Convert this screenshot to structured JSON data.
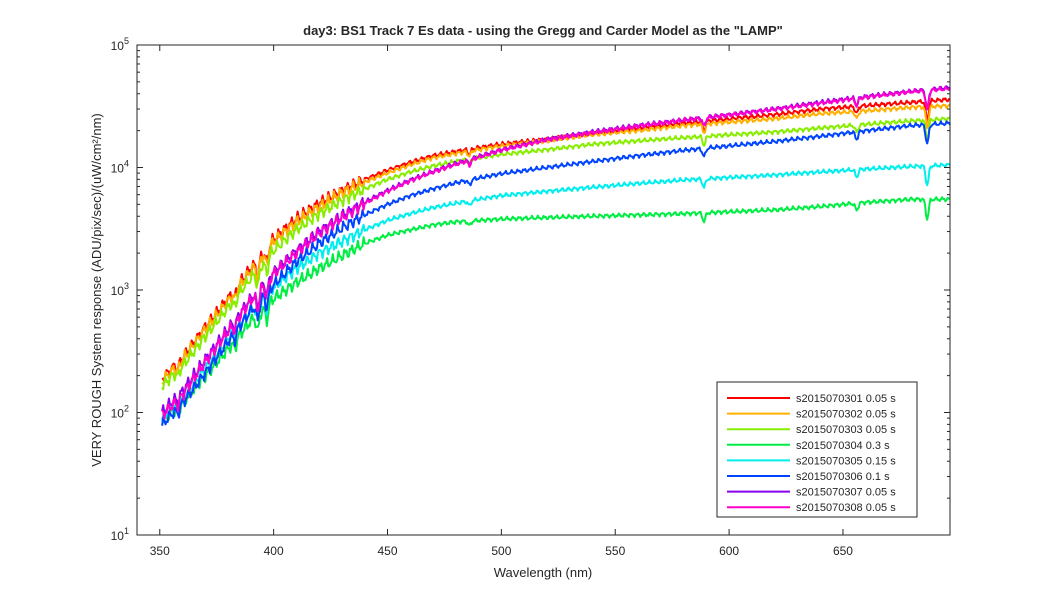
{
  "chart_data": {
    "type": "line",
    "title": "day3: BS1  Track 7 Es data - using the Gregg and Carder Model as the \"LAMP\"",
    "xlabel": "Wavelength (nm)",
    "ylabel": "VERY ROUGH System response (ADU/pix/sec)/(uW/cm²/nm)",
    "xlim": [
      340,
      697
    ],
    "ylim": [
      10,
      100000
    ],
    "yscale": "log",
    "grid": false,
    "legend_position": "bottom-right",
    "x_ticks": [
      350,
      400,
      450,
      500,
      550,
      600,
      650
    ],
    "x_tick_labels": [
      "350",
      "400",
      "450",
      "500",
      "550",
      "600",
      "650"
    ],
    "y_ticks": [
      10,
      100,
      1000,
      10000,
      100000
    ],
    "y_tick_labels": [
      {
        "base": "10",
        "exp": "1"
      },
      {
        "base": "10",
        "exp": "2"
      },
      {
        "base": "10",
        "exp": "3"
      },
      {
        "base": "10",
        "exp": "4"
      },
      {
        "base": "10",
        "exp": "5"
      }
    ],
    "x": [
      351,
      360,
      370,
      380,
      390,
      400,
      410,
      420,
      430,
      440,
      450,
      460,
      470,
      480,
      490,
      500,
      520,
      540,
      560,
      580,
      600,
      620,
      640,
      660,
      680,
      697
    ],
    "series": [
      {
        "name": "s2015070301 0.05 s",
        "color": "#ff0000",
        "values": [
          190,
          280,
          500,
          850,
          1500,
          2600,
          3800,
          5100,
          6500,
          8000,
          9500,
          11000,
          12500,
          13500,
          14500,
          15500,
          17000,
          19000,
          21000,
          23000,
          25000,
          27000,
          30000,
          32000,
          34000,
          36000
        ]
      },
      {
        "name": "s2015070302 0.05 s",
        "color": "#ffb000",
        "values": [
          180,
          270,
          480,
          820,
          1450,
          2500,
          3600,
          4800,
          6200,
          7600,
          9000,
          10500,
          12000,
          13000,
          14000,
          15000,
          16500,
          18500,
          20000,
          22000,
          23500,
          25000,
          27500,
          29000,
          31000,
          32000
        ]
      },
      {
        "name": "s2015070303 0.05 s",
        "color": "#88ee00",
        "values": [
          165,
          240,
          420,
          720,
          1250,
          2100,
          3100,
          4200,
          5400,
          6700,
          8000,
          9200,
          10300,
          11200,
          12000,
          12800,
          14000,
          15500,
          16500,
          17500,
          18500,
          19500,
          21000,
          22500,
          24000,
          25000
        ]
      },
      {
        "name": "s2015070304 0.3 s",
        "color": "#00ee44",
        "values": [
          85,
          120,
          200,
          330,
          560,
          850,
          1150,
          1500,
          1900,
          2400,
          2800,
          3100,
          3400,
          3600,
          3700,
          3800,
          3900,
          4000,
          4100,
          4200,
          4350,
          4500,
          4800,
          5200,
          5500,
          5500
        ]
      },
      {
        "name": "s2015070305 0.15 s",
        "color": "#00eeee",
        "values": [
          90,
          130,
          230,
          400,
          680,
          1050,
          1500,
          2000,
          2500,
          3100,
          3700,
          4200,
          4700,
          5100,
          5500,
          5900,
          6400,
          6900,
          7400,
          7900,
          8300,
          8700,
          9200,
          9700,
          10200,
          10500
        ]
      },
      {
        "name": "s2015070306 0.1 s",
        "color": "#0044ff",
        "values": [
          80,
          120,
          210,
          380,
          680,
          1100,
          1700,
          2400,
          3200,
          4100,
          5000,
          5900,
          6700,
          7500,
          8200,
          8900,
          10000,
          11200,
          12500,
          13800,
          15000,
          16300,
          18000,
          20000,
          22000,
          23000
        ]
      },
      {
        "name": "s2015070307 0.05 s",
        "color": "#8800ee",
        "values": [
          100,
          150,
          270,
          480,
          850,
          1400,
          2100,
          3000,
          4000,
          5200,
          6500,
          7900,
          9300,
          10800,
          12300,
          14000,
          17000,
          19500,
          22000,
          24500,
          27000,
          30000,
          34000,
          38000,
          42000,
          45000
        ]
      },
      {
        "name": "s2015070308 0.05 s",
        "color": "#ff00cc",
        "values": [
          95,
          140,
          260,
          460,
          820,
          1350,
          2000,
          2900,
          3900,
          5100,
          6400,
          7800,
          9200,
          10600,
          12100,
          13800,
          16800,
          19300,
          21800,
          24300,
          26800,
          29800,
          33500,
          37500,
          41500,
          44000
        ]
      }
    ]
  }
}
